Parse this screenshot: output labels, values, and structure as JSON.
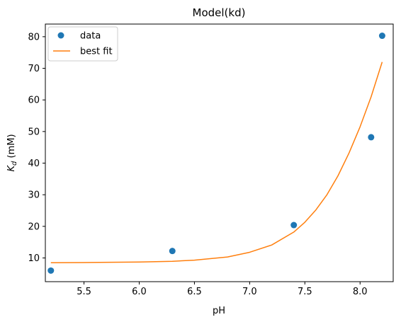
{
  "chart_data": {
    "type": "scatter",
    "title": "Model(kd)",
    "xlabel": "pH",
    "ylabel_main": "K",
    "ylabel_sub": "d",
    "ylabel_unit": " (mM)",
    "xlim": [
      5.15,
      8.3
    ],
    "ylim": [
      2.5,
      84
    ],
    "xticks": [
      5.5,
      6.0,
      6.5,
      7.0,
      7.5,
      8.0
    ],
    "xtick_labels": [
      "5.5",
      "6.0",
      "6.5",
      "7.0",
      "7.5",
      "8.0"
    ],
    "yticks": [
      10,
      20,
      30,
      40,
      50,
      60,
      70,
      80
    ],
    "ytick_labels": [
      "10",
      "20",
      "30",
      "40",
      "50",
      "60",
      "70",
      "80"
    ],
    "grid": false,
    "legend_position": "upper-left",
    "series": [
      {
        "name": "data",
        "kind": "points",
        "color": "#1f77b4",
        "x": [
          5.2,
          6.3,
          7.4,
          8.1,
          8.2
        ],
        "y": [
          6.0,
          12.2,
          20.4,
          48.2,
          80.3
        ]
      },
      {
        "name": "best fit",
        "kind": "line",
        "color": "#ff7f0e",
        "x": [
          5.2,
          5.5,
          6.0,
          6.3,
          6.5,
          6.8,
          7.0,
          7.2,
          7.4,
          7.5,
          7.6,
          7.7,
          7.8,
          7.9,
          8.0,
          8.1,
          8.2
        ],
        "y": [
          8.5,
          8.55,
          8.7,
          8.95,
          9.3,
          10.3,
          11.8,
          14.1,
          18.2,
          21.3,
          25.2,
          30.0,
          36.0,
          43.2,
          51.5,
          61.0,
          72.0
        ]
      }
    ]
  }
}
